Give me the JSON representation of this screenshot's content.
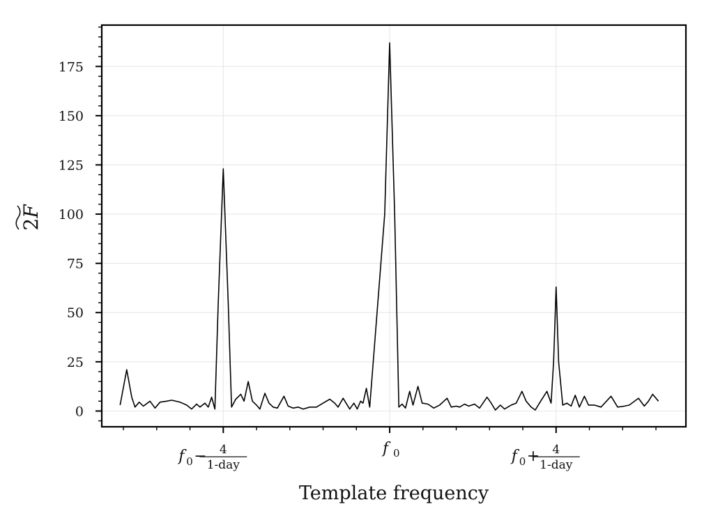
{
  "chart_data": {
    "type": "line",
    "title": "",
    "xlabel": "Template frequency",
    "ylabel": "2F (tilde)",
    "ylabel_parts": {
      "prefix": "2",
      "symbol": "F"
    },
    "xlim": [
      -16,
      16
    ],
    "ylim": [
      -8,
      196
    ],
    "grid": true,
    "x_ticks": [
      {
        "x": -10,
        "base": "f",
        "sub": "0",
        "op": "−",
        "num": "4",
        "den": "1-day"
      },
      {
        "x": 0,
        "base": "f",
        "sub": "0",
        "op": "",
        "num": "",
        "den": ""
      },
      {
        "x": 10,
        "base": "f",
        "sub": "0",
        "op": "+",
        "num": "4",
        "den": "1-day"
      }
    ],
    "x_minor_ticks": [
      -16,
      -14,
      -12,
      -8,
      -6,
      -4,
      -2,
      2,
      4,
      6,
      8,
      12,
      14,
      16
    ],
    "y_ticks": [
      "0",
      "25",
      "50",
      "75",
      "100",
      "125",
      "150",
      "175"
    ],
    "series": [
      {
        "name": "",
        "color": "#000000",
        "points": [
          [
            -16.2,
            3
          ],
          [
            -15.8,
            21
          ],
          [
            -15.5,
            7
          ],
          [
            -15.3,
            2
          ],
          [
            -15.05,
            4.5
          ],
          [
            -14.8,
            2.5
          ],
          [
            -14.4,
            5
          ],
          [
            -14.1,
            1.5
          ],
          [
            -13.8,
            4.5
          ],
          [
            -13.4,
            5
          ],
          [
            -13.1,
            5.5
          ],
          [
            -12.6,
            4.5
          ],
          [
            -12.2,
            3
          ],
          [
            -11.9,
            1
          ],
          [
            -11.6,
            3.5
          ],
          [
            -11.4,
            2
          ],
          [
            -11.1,
            4
          ],
          [
            -10.9,
            2
          ],
          [
            -10.7,
            7
          ],
          [
            -10.5,
            1
          ],
          [
            -10.3,
            55
          ],
          [
            -10.0,
            123
          ],
          [
            -9.7,
            55
          ],
          [
            -9.5,
            2
          ],
          [
            -9.25,
            6
          ],
          [
            -8.95,
            8.5
          ],
          [
            -8.75,
            5
          ],
          [
            -8.5,
            15
          ],
          [
            -8.25,
            5
          ],
          [
            -8.0,
            3
          ],
          [
            -7.8,
            1
          ],
          [
            -7.5,
            9
          ],
          [
            -7.25,
            4
          ],
          [
            -7.0,
            2
          ],
          [
            -6.75,
            1.5
          ],
          [
            -6.35,
            7.5
          ],
          [
            -6.1,
            2.5
          ],
          [
            -5.8,
            1.5
          ],
          [
            -5.5,
            2
          ],
          [
            -5.2,
            1
          ],
          [
            -4.8,
            2
          ],
          [
            -4.4,
            2
          ],
          [
            -4.0,
            4
          ],
          [
            -3.6,
            6
          ],
          [
            -3.3,
            4
          ],
          [
            -3.1,
            2
          ],
          [
            -2.8,
            6.5
          ],
          [
            -2.55,
            3
          ],
          [
            -2.4,
            1
          ],
          [
            -2.15,
            4
          ],
          [
            -1.95,
            1
          ],
          [
            -1.75,
            5
          ],
          [
            -1.6,
            4
          ],
          [
            -1.4,
            11.5
          ],
          [
            -1.2,
            2
          ],
          [
            -0.3,
            100
          ],
          [
            0.0,
            187
          ],
          [
            0.3,
            100
          ],
          [
            0.55,
            2
          ],
          [
            0.75,
            3.5
          ],
          [
            0.95,
            1.5
          ],
          [
            1.2,
            10
          ],
          [
            1.4,
            3
          ],
          [
            1.7,
            12.5
          ],
          [
            1.95,
            4
          ],
          [
            2.3,
            3.5
          ],
          [
            2.65,
            1.5
          ],
          [
            3.0,
            3
          ],
          [
            3.45,
            6.5
          ],
          [
            3.7,
            2
          ],
          [
            4.0,
            2.5
          ],
          [
            4.2,
            2
          ],
          [
            4.5,
            3.5
          ],
          [
            4.75,
            2.5
          ],
          [
            5.1,
            3.5
          ],
          [
            5.4,
            1.5
          ],
          [
            5.85,
            7
          ],
          [
            6.1,
            4
          ],
          [
            6.35,
            0.5
          ],
          [
            6.65,
            3
          ],
          [
            6.9,
            1
          ],
          [
            7.3,
            3
          ],
          [
            7.6,
            4
          ],
          [
            7.95,
            10
          ],
          [
            8.2,
            5
          ],
          [
            8.5,
            2
          ],
          [
            8.75,
            0.5
          ],
          [
            9.0,
            4
          ],
          [
            9.45,
            10
          ],
          [
            9.7,
            4
          ],
          [
            9.85,
            25
          ],
          [
            10.0,
            63
          ],
          [
            10.15,
            25
          ],
          [
            10.4,
            3
          ],
          [
            10.65,
            4
          ],
          [
            10.9,
            2.5
          ],
          [
            11.15,
            8
          ],
          [
            11.4,
            2
          ],
          [
            11.7,
            7.5
          ],
          [
            11.95,
            3
          ],
          [
            12.3,
            3
          ],
          [
            12.7,
            2
          ],
          [
            13.3,
            7.5
          ],
          [
            13.7,
            2
          ],
          [
            14.1,
            2.5
          ],
          [
            14.4,
            3
          ],
          [
            14.95,
            6.5
          ],
          [
            15.3,
            2.5
          ],
          [
            15.55,
            5
          ],
          [
            15.8,
            8.5
          ],
          [
            16.15,
            5
          ]
        ]
      }
    ]
  }
}
